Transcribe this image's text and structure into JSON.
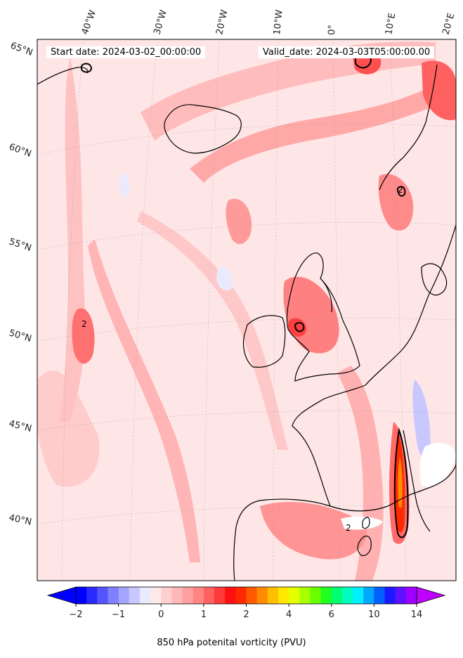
{
  "header": {
    "start_date": "Start date: 2024-03-02_00:00:00",
    "valid_date": "Valid_date: 2024-03-03T05:00:00.00"
  },
  "longitude_labels": [
    "40°W",
    "30°W",
    "20°W",
    "10°W",
    "0°",
    "10°E",
    "20°E"
  ],
  "latitude_labels": [
    "65°N",
    "60°N",
    "55°N",
    "50°N",
    "45°N",
    "40°N"
  ],
  "colorbar": {
    "label": "850 hPa potenital vorticity (PVU)",
    "tick_labels": [
      "−2",
      "−1",
      "0",
      "1",
      "2",
      "4",
      "6",
      "10",
      "14"
    ],
    "colors": [
      "#0000ff",
      "#2a2aff",
      "#5555ff",
      "#7f7fff",
      "#a5a5ff",
      "#c8c8ff",
      "#eaeaff",
      "#ffe8e8",
      "#ffd0d0",
      "#ffb8b8",
      "#ffa0a0",
      "#ff8484",
      "#ff6060",
      "#ff3a3a",
      "#ff1010",
      "#ff2a00",
      "#ff5a00",
      "#ff8c00",
      "#ffbf00",
      "#ffe800",
      "#e6ff00",
      "#a8ff00",
      "#6aff00",
      "#20ff20",
      "#00ff70",
      "#00ffbf",
      "#00f0ff",
      "#00a8ff",
      "#0060ff",
      "#1a1aff",
      "#6010ff",
      "#a000ff"
    ],
    "extend_low": "#0000ff",
    "extend_high": "#c000ff"
  },
  "contour_label": "2"
}
